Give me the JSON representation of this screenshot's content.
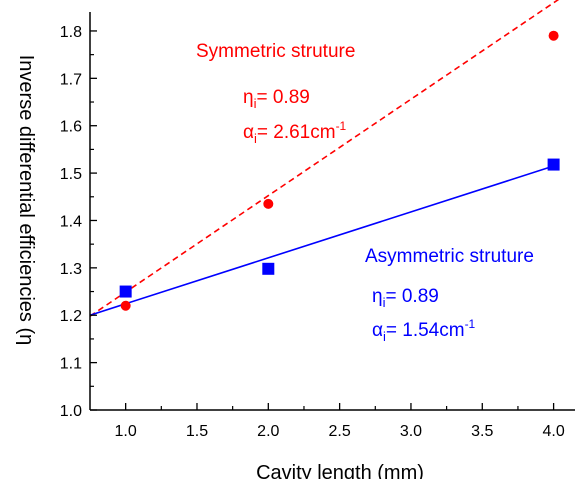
{
  "chart_data": {
    "type": "scatter",
    "title": "",
    "xlabel": "Cavity length (mm)",
    "ylabel": "Inverse differential efficiencies (η",
    "xlim": [
      0.75,
      4.15
    ],
    "ylim": [
      1.0,
      1.84
    ],
    "xticks": [
      "1.0",
      "1.5",
      "2.0",
      "2.5",
      "3.0",
      "3.5",
      "4.0"
    ],
    "yticks": [
      "1.0",
      "1.1",
      "1.2",
      "1.3",
      "1.4",
      "1.5",
      "1.6",
      "1.7",
      "1.8"
    ],
    "grid": false,
    "series": [
      {
        "name": "Symmetric struture",
        "marker": "circle",
        "line": "dashed",
        "color": "#ff0000",
        "x": [
          1.0,
          2.0,
          4.0
        ],
        "y": [
          1.22,
          1.435,
          1.79
        ],
        "fit": {
          "x": [
            0.75,
            4.15
          ],
          "y": [
            1.198,
            1.89
          ]
        },
        "eta_label": "η",
        "eta_sub": "i",
        "eta_value": "= 0.89",
        "alpha_label": "α",
        "alpha_sub": "i",
        "alpha_value": "= 2.61cm",
        "alpha_sup": "-1"
      },
      {
        "name": "Asymmetric struture",
        "marker": "square",
        "line": "solid",
        "color": "#0000ff",
        "x": [
          1.0,
          2.0,
          4.0
        ],
        "y": [
          1.25,
          1.298,
          1.518
        ],
        "fit": {
          "x": [
            0.75,
            4.0
          ],
          "y": [
            1.2,
            1.515
          ]
        },
        "eta_label": "η",
        "eta_sub": "i",
        "eta_value": "= 0.89",
        "alpha_label": "α",
        "alpha_sub": "i",
        "alpha_value": "= 1.54cm",
        "alpha_sup": "-1"
      }
    ]
  }
}
